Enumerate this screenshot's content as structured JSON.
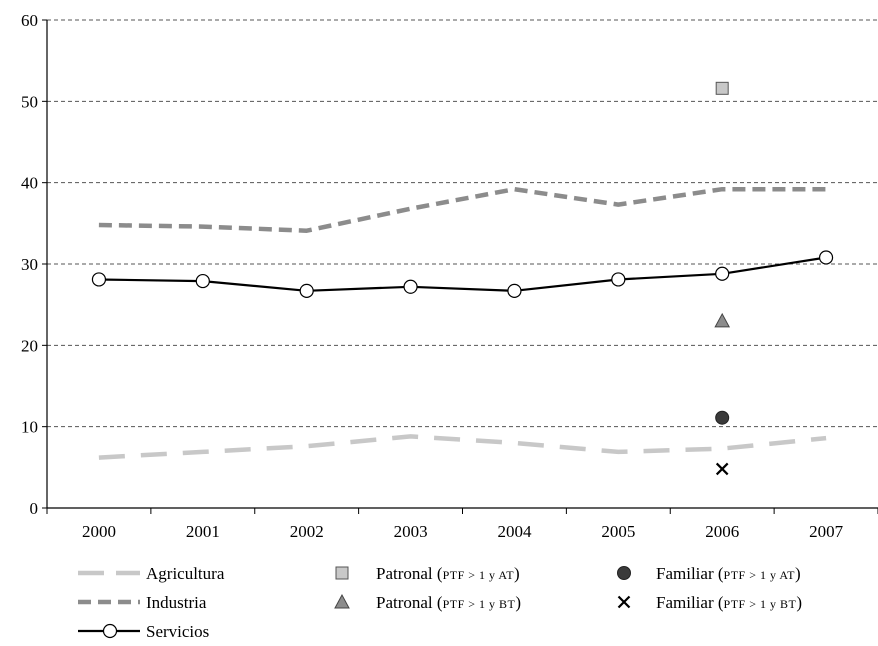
{
  "chart_data": {
    "type": "line",
    "title": "",
    "xlabel": "",
    "ylabel": "",
    "ylim": [
      0,
      60
    ],
    "yticks": [
      "0",
      "10",
      "20",
      "30",
      "40",
      "50",
      "60"
    ],
    "categories": [
      "2000",
      "2001",
      "2002",
      "2003",
      "2004",
      "2005",
      "2006",
      "2007"
    ],
    "grid": true,
    "series": [
      {
        "name": "Agricultura",
        "values": [
          6.2,
          6.9,
          7.6,
          8.8,
          8.0,
          6.9,
          7.3,
          8.6
        ],
        "color": "#c8c8c8",
        "style": "long-dash"
      },
      {
        "name": "Industria",
        "values": [
          34.8,
          34.6,
          34.1,
          36.8,
          39.2,
          37.3,
          39.2,
          39.2
        ],
        "color": "#8c8c8c",
        "style": "dash"
      },
      {
        "name": "Servicios",
        "values": [
          28.1,
          27.9,
          26.7,
          27.2,
          26.7,
          28.1,
          28.8,
          30.8
        ],
        "color": "#000000",
        "style": "solid-open-circle"
      }
    ],
    "points": [
      {
        "name": "Patronal",
        "qualifier": "PTF > 1 y AT",
        "category": "2006",
        "value": 51.6,
        "marker": "square",
        "color": "#c8c8c8"
      },
      {
        "name": "Patronal",
        "qualifier": "PTF > 1 y BT",
        "category": "2006",
        "value": 23.0,
        "marker": "triangle",
        "color": "#8c8c8c"
      },
      {
        "name": "Familiar",
        "qualifier": "PTF > 1 y AT",
        "category": "2006",
        "value": 11.1,
        "marker": "circle",
        "color": "#3a3a3a"
      },
      {
        "name": "Familiar",
        "qualifier": "PTF > 1 y BT",
        "category": "2006",
        "value": 4.8,
        "marker": "x",
        "color": "#000000"
      }
    ],
    "legend_position": "bottom"
  }
}
